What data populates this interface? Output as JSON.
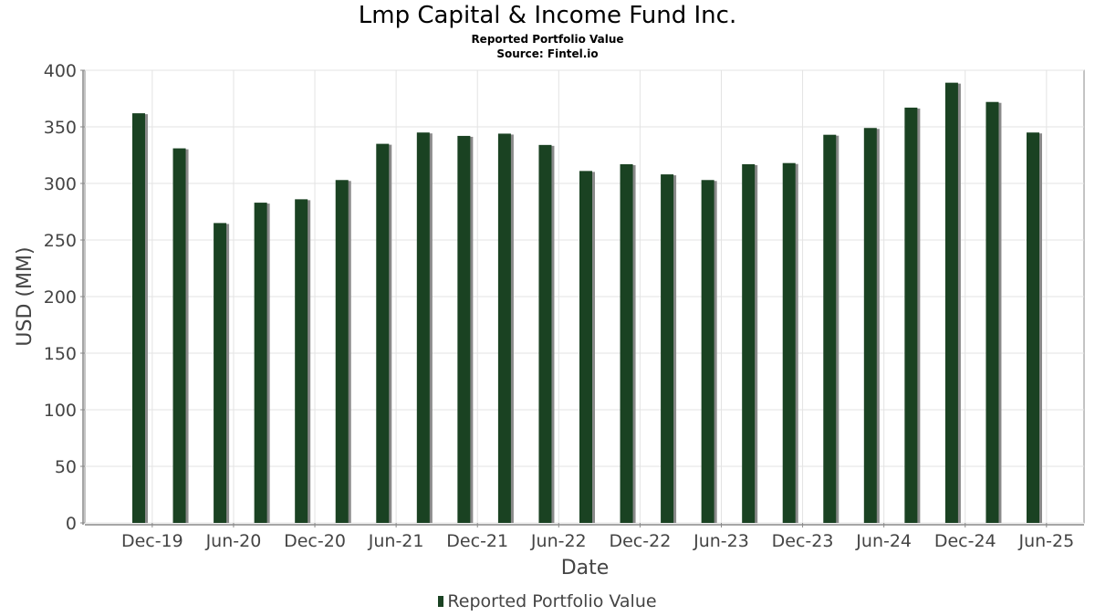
{
  "title": "Lmp Capital & Income Fund Inc.",
  "subtitle1": "Reported Portfolio Value",
  "subtitle2": "Source: Fintel.io",
  "legend": {
    "label": "Reported Portfolio Value"
  },
  "colors": {
    "bar": "#1a4222",
    "shadow": "#8a8a8a",
    "grid": "#e3e3e3",
    "axis": "#888888"
  },
  "chart_data": {
    "type": "bar",
    "title": "Lmp Capital & Income Fund Inc.",
    "subtitle": "Reported Portfolio Value",
    "xlabel": "Date",
    "ylabel": "USD (MM)",
    "ylim": [
      0,
      400
    ],
    "yticks": [
      0,
      50,
      100,
      150,
      200,
      250,
      300,
      350,
      400
    ],
    "xticks": [
      "Dec-19",
      "Jun-20",
      "Dec-20",
      "Jun-21",
      "Dec-21",
      "Jun-22",
      "Dec-22",
      "Jun-23",
      "Dec-23",
      "Jun-24",
      "Dec-24",
      "Jun-25"
    ],
    "grid": true,
    "legend_position": "bottom",
    "categories": [
      "2019-11",
      "2020-02",
      "2020-05",
      "2020-08",
      "2020-11",
      "2021-02",
      "2021-05",
      "2021-08",
      "2021-11",
      "2022-02",
      "2022-05",
      "2022-08",
      "2022-11",
      "2023-02",
      "2023-05",
      "2023-08",
      "2023-11",
      "2024-02",
      "2024-05",
      "2024-08",
      "2024-11",
      "2025-02",
      "2025-05"
    ],
    "series": [
      {
        "name": "Reported Portfolio Value",
        "values": [
          362,
          331,
          265,
          283,
          286,
          303,
          335,
          345,
          342,
          344,
          334,
          311,
          317,
          308,
          303,
          317,
          318,
          343,
          349,
          367,
          389,
          372,
          345
        ]
      }
    ]
  }
}
